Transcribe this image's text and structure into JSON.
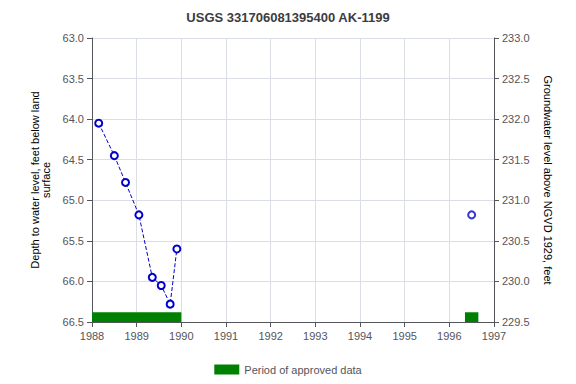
{
  "chart_data": {
    "type": "line",
    "title": "USGS 331706081395400 AK-1199",
    "ylabel": "Depth to water level, feet below land\nsurface",
    "y2label": "Groundwater level above NGVD 1929, feet",
    "series": [
      {
        "type": "line",
        "color": "#0000cc",
        "marker": "circle-open",
        "line_style": "dashed",
        "x": [
          1988.15,
          1988.5,
          1988.75,
          1989.05,
          1989.35,
          1989.55,
          1989.75,
          1989.9
        ],
        "values": [
          64.05,
          64.45,
          64.78,
          65.18,
          65.95,
          66.05,
          66.28,
          65.6
        ]
      },
      {
        "type": "scatter",
        "color": "#0000cc",
        "marker": "circle-open",
        "x": [
          1996.5
        ],
        "values": [
          65.18
        ]
      }
    ],
    "approved_periods": {
      "label": "Period of approved data",
      "color": "#008000",
      "ranges": [
        [
          1988.0,
          1990.0
        ],
        [
          1996.35,
          1996.65
        ]
      ],
      "y_range": [
        66.38,
        66.5
      ]
    },
    "xlim": [
      1988,
      1997
    ],
    "xticks": [
      1988,
      1989,
      1990,
      1991,
      1992,
      1993,
      1994,
      1995,
      1996,
      1997
    ],
    "ylim": [
      66.5,
      63.0
    ],
    "yticks": [
      {
        "value": 63.0,
        "label": "63.0"
      },
      63.5,
      {
        "value": 64.0,
        "label": "64.0"
      },
      64.5,
      {
        "value": 65.0,
        "label": "65.0"
      },
      65.5,
      {
        "value": 66.0,
        "label": "66.0"
      },
      66.5
    ],
    "y2lim": [
      229.5,
      233.0
    ],
    "y2ticks": [
      229.5,
      {
        "value": 230.0,
        "label": "230.0"
      },
      230.5,
      {
        "value": 231.0,
        "label": "231.0"
      },
      231.5,
      {
        "value": 232.0,
        "label": "232.0"
      },
      232.5,
      {
        "value": 233.0,
        "label": "233.0"
      }
    ],
    "grid": true,
    "legend": "bottom"
  }
}
